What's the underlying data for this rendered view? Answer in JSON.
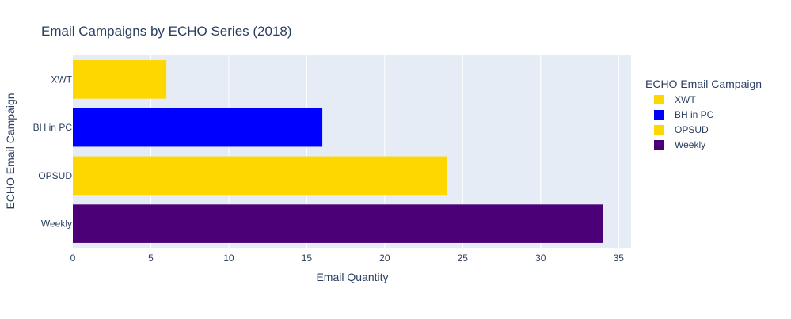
{
  "chart_data": {
    "type": "bar",
    "orientation": "horizontal",
    "title": "Email Campaigns by ECHO Series (2018)",
    "xlabel": "Email Quantity",
    "ylabel": "ECHO Email Campaign",
    "categories": [
      "XWT",
      "BH in PC",
      "OPSUD",
      "Weekly"
    ],
    "values": [
      6,
      16,
      24,
      34
    ],
    "colors": [
      "#ffd700",
      "#0000ff",
      "#ffd700",
      "#4b0078"
    ],
    "xlim": [
      0,
      35.8
    ],
    "xticks": [
      0,
      5,
      10,
      15,
      20,
      25,
      30,
      35
    ],
    "grid": true,
    "legend": {
      "title": "ECHO Email Campaign",
      "placement": "right",
      "items": [
        {
          "label": "XWT",
          "color": "#ffd700"
        },
        {
          "label": "BH in PC",
          "color": "#0000ff"
        },
        {
          "label": "OPSUD",
          "color": "#ffd700"
        },
        {
          "label": "Weekly",
          "color": "#4b0078"
        }
      ]
    },
    "plot_bg": "#e5ecf6"
  }
}
